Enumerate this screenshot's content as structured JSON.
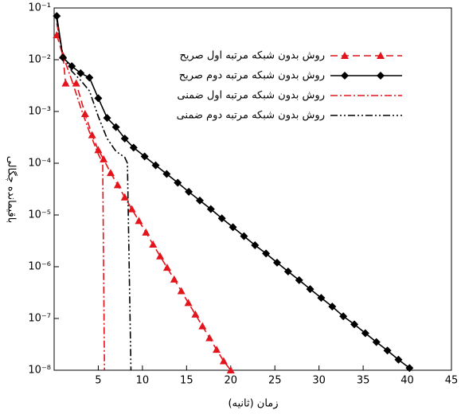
{
  "chart_data": {
    "type": "line",
    "x_label": "زمان (ثانیه)",
    "y_label": "باقیمانده چگالی",
    "xlim": [
      0,
      45
    ],
    "xticks": [
      5,
      10,
      15,
      20,
      25,
      30,
      35,
      40,
      45
    ],
    "ylim": [
      1e-08,
      0.1
    ],
    "log_y": true,
    "yticks": [
      {
        "value": 0.1,
        "label": "10⁻¹"
      },
      {
        "value": 0.01,
        "label": "10⁻²"
      },
      {
        "value": 0.001,
        "label": "10⁻³"
      },
      {
        "value": 0.0001,
        "label": "10⁻⁴"
      },
      {
        "value": 1e-05,
        "label": "10⁻⁵"
      },
      {
        "value": 1e-06,
        "label": "10⁻⁶"
      },
      {
        "value": 1e-07,
        "label": "10⁻⁷"
      },
      {
        "value": 1e-08,
        "label": "10⁻⁸"
      }
    ],
    "legend": "top-right",
    "series": [
      {
        "name": "روش بدون شبکه مرتبه اول صریح",
        "color": "#e3141b",
        "dash": "dashed",
        "marker": "triangle",
        "x": [
          0.3,
          1.0,
          1.3,
          2.5,
          3.5,
          4.3,
          5.0,
          5.6,
          6.4,
          7.2,
          8.0,
          8.8,
          9.6,
          10.4,
          11.2,
          12.0,
          12.8,
          13.6,
          14.4,
          15.2,
          16.0,
          16.8,
          17.6,
          18.4,
          19.2,
          20.0
        ],
        "values": [
          0.03,
          0.012,
          0.0035,
          0.0035,
          0.0009,
          0.00035,
          0.00018,
          0.00012,
          6.5e-05,
          3.8e-05,
          2.2e-05,
          1.3e-05,
          7.7e-06,
          4.6e-06,
          2.7e-06,
          1.6e-06,
          9.6e-07,
          5.7e-07,
          3.4e-07,
          2e-07,
          1.2e-07,
          7.1e-08,
          4.2e-08,
          2.5e-08,
          1.5e-08,
          1e-08
        ]
      },
      {
        "name": "روش بدون شبکه مرتبه دوم صریح",
        "color": "#000000",
        "dash": "solid",
        "marker": "diamond",
        "x": [
          0.3,
          1.0,
          2.0,
          3.0,
          4.0,
          5.0,
          6.0,
          7.0,
          8.0,
          9.0,
          10.25,
          11.5,
          12.75,
          14.0,
          15.25,
          16.5,
          17.75,
          19.0,
          20.25,
          21.5,
          22.75,
          24.0,
          25.25,
          26.5,
          27.75,
          29.0,
          30.25,
          31.5,
          32.75,
          34.0,
          35.25,
          36.5,
          37.75,
          39.0,
          40.25
        ],
        "values": [
          0.07,
          0.011,
          0.0075,
          0.0055,
          0.0045,
          0.0018,
          0.00075,
          0.0005,
          0.0003,
          0.0002,
          0.000135,
          9.1e-05,
          6.2e-05,
          4.2e-05,
          2.8e-05,
          1.9e-05,
          1.3e-05,
          8.6e-06,
          5.8e-06,
          3.9e-06,
          2.6e-06,
          1.8e-06,
          1.2e-06,
          8.1e-07,
          5.5e-07,
          3.7e-07,
          2.5e-07,
          1.7e-07,
          1.1e-07,
          7.7e-08,
          5.2e-08,
          3.5e-08,
          2.4e-08,
          1.6e-08,
          1.1e-08
        ]
      },
      {
        "name": "روش بدون شبکه مرتبه اول ضمنی",
        "color": "#e3141b",
        "dash": "dashdot",
        "marker": "none",
        "x": [
          0.3,
          1.0,
          2.0,
          3.0,
          4.0,
          5.0,
          5.5,
          5.7
        ],
        "values": [
          0.05,
          0.012,
          0.004,
          0.0012,
          0.0004,
          0.00015,
          0.0001,
          1e-08
        ]
      },
      {
        "name": "روش بدون شبکه مرتبه دوم ضمنی",
        "color": "#000000",
        "dash": "dashdotdot",
        "marker": "none",
        "x": [
          0.3,
          1.0,
          2.0,
          3.0,
          4.0,
          5.0,
          6.0,
          7.0,
          8.0,
          8.3,
          8.7
        ],
        "values": [
          0.06,
          0.012,
          0.006,
          0.004,
          0.0025,
          0.0008,
          0.0003,
          0.00017,
          0.00013,
          0.0001,
          1e-08
        ]
      }
    ]
  }
}
